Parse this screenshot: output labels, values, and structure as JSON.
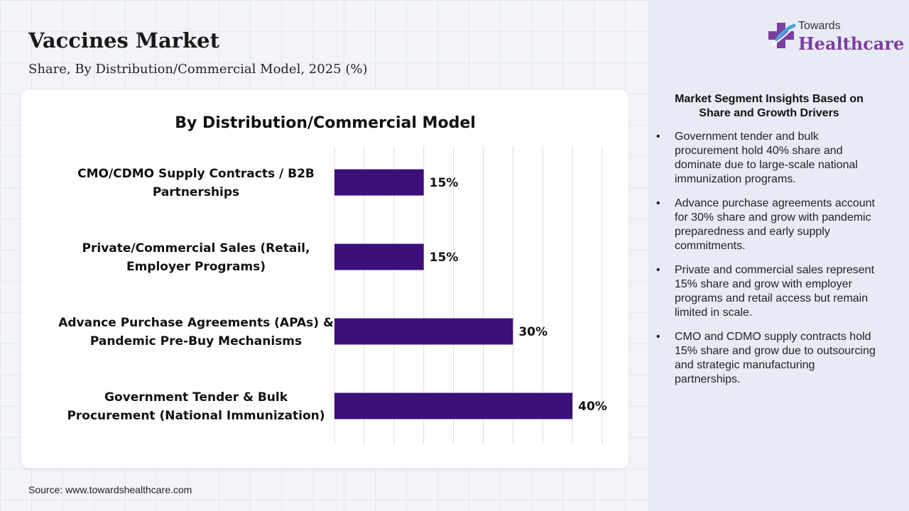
{
  "header": {
    "title": "Vaccines Market",
    "subtitle": "Share, By Distribution/Commercial Model, 2025 (%)"
  },
  "logo": {
    "small_text": "Towards",
    "big_text": "Healthcare",
    "colors": {
      "cross_purple": "#7b3fa0",
      "cross_blue": "#4aa3df",
      "text": "#7b3fa0"
    }
  },
  "chart_data": {
    "type": "bar",
    "orientation": "horizontal",
    "title": "By Distribution/Commercial Model",
    "categories": [
      [
        "CMO/CDMO Supply Contracts / B2B",
        "Partnerships"
      ],
      [
        "Private/Commercial Sales (Retail,",
        "Employer Programs)"
      ],
      [
        "Advance Purchase Agreements (APAs) &",
        "Pandemic Pre-Buy Mechanisms"
      ],
      [
        "Government Tender & Bulk",
        "Procurement (National Immunization)"
      ]
    ],
    "values": [
      15,
      15,
      30,
      40
    ],
    "value_labels": [
      "15%",
      "15%",
      "30%",
      "40%"
    ],
    "xlim": [
      0,
      45
    ],
    "grid": true,
    "bar_color": "#3d0f7a",
    "xlabel": "",
    "ylabel": ""
  },
  "insights": {
    "title_lines": [
      "Market Segment Insights Based on",
      "Share and Growth Drivers"
    ],
    "items": [
      "Government tender and bulk procurement hold 40% share and dominate due to large-scale national immunization programs.",
      "Advance purchase agreements account for 30% share and grow with pandemic preparedness and early supply commitments.",
      "Private and commercial sales represent 15% share and grow with employer programs and retail access but remain limited in scale.",
      "CMO and CDMO supply contracts hold 15% share and grow due to outsourcing and strategic manufacturing partnerships."
    ]
  },
  "footer": {
    "source": "Source: www.towardshealthcare.com"
  }
}
